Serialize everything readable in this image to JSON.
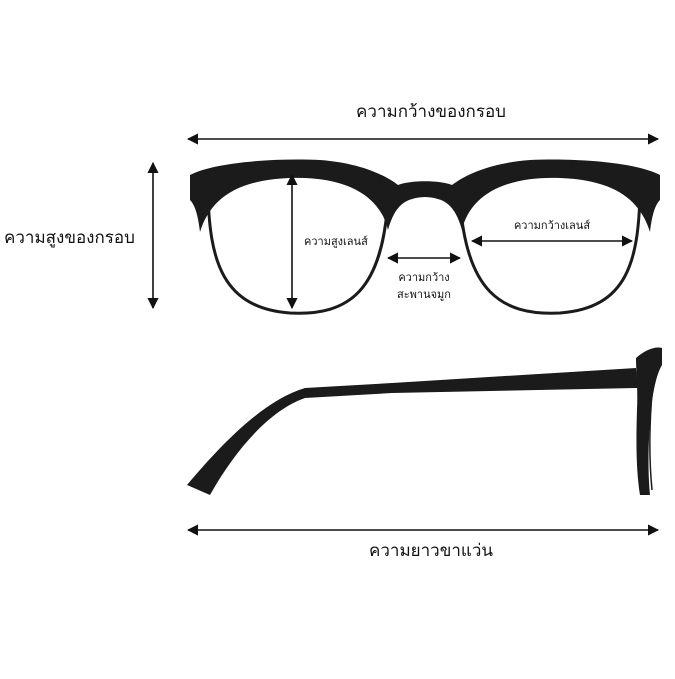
{
  "labels": {
    "frame_width": "ความกว้างของกรอบ",
    "frame_height": "ความสูงของกรอบ",
    "lens_height": "ความสูงเลนส์",
    "lens_width": "ความกว้างเลนส์",
    "bridge_width_line1": "ความกว้าง",
    "bridge_width_line2": "สะพานจมูก",
    "temple_length": "ความยาวขาแว่น"
  },
  "colors": {
    "frame": "#1b1b1b",
    "arrow": "#111111",
    "background": "#ffffff"
  }
}
